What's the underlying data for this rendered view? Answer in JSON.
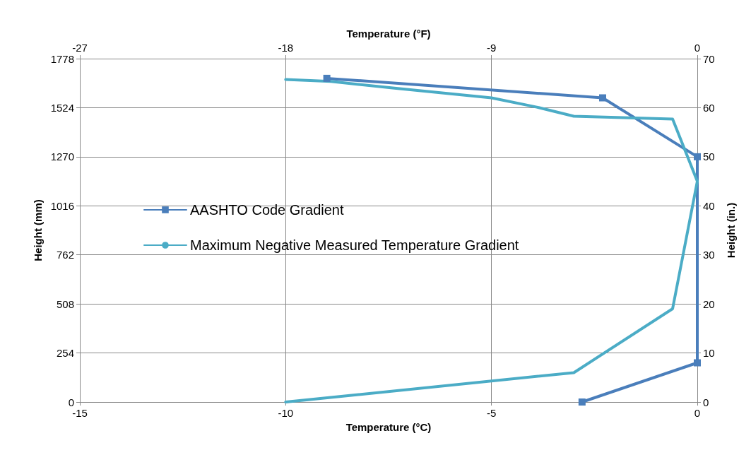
{
  "chart_data": {
    "type": "line",
    "xlabel": "Temperature (°C)",
    "x2label": "Temperature (°F)",
    "ylabel": "Height (mm)",
    "y2label": "Height (in.)",
    "xlim": [
      -15,
      0
    ],
    "xticks": [
      -15,
      -10,
      -5,
      0
    ],
    "x2lim": [
      -27,
      0
    ],
    "x2ticks": [
      -27,
      -18,
      -9,
      0
    ],
    "ylim": [
      0,
      1778
    ],
    "yticks": [
      0,
      254,
      508,
      762,
      1016,
      1270,
      1524,
      1778
    ],
    "y2lim": [
      0,
      70
    ],
    "y2ticks": [
      0,
      10,
      20,
      30,
      40,
      50,
      60,
      70
    ],
    "series": [
      {
        "name": "AASHTO Code Gradient",
        "color": "#4a7ebb",
        "marker": "square",
        "x": [
          -2.8,
          0,
          0,
          -2.3,
          -9
        ],
        "values": [
          0,
          203,
          1270,
          1575,
          1676
        ]
      },
      {
        "name": "Maximum Negative Measured Temperature Gradient",
        "color": "#4bacc6",
        "marker": "none",
        "x": [
          -10,
          -3,
          -0.6,
          -0.3,
          0,
          -0.6,
          -3,
          -3.9,
          -5,
          -7.4,
          -8.9,
          -10
        ],
        "values": [
          0,
          152,
          483,
          813,
          1143,
          1465,
          1480,
          1527,
          1575,
          1626,
          1660,
          1670
        ]
      }
    ],
    "grid": true,
    "legend": "left"
  }
}
